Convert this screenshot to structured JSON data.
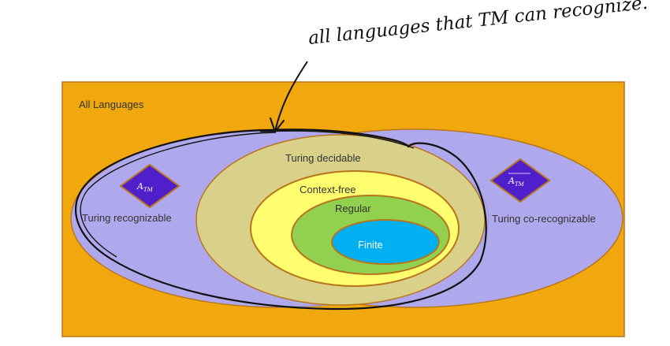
{
  "annotation": {
    "text": "all languages that TM can recognize."
  },
  "regions": {
    "all_languages": "All Languages",
    "turing_recognizable": "Turing recognizable",
    "turing_co_recognizable": "Turing co-recognizable",
    "turing_decidable": "Turing decidable",
    "context_free": "Context-free",
    "regular": "Regular",
    "finite": "Finite"
  },
  "symbols": {
    "atm_main": "A",
    "atm_sub": "TM",
    "atm_complement_main": "A",
    "atm_complement_sub": "TM"
  },
  "colors": {
    "all_languages": "#F0A80E",
    "recognizable": "#AFA8EC",
    "decidable": "#D9D08A",
    "context_free": "#FFFF70",
    "regular": "#92D050",
    "finite": "#00B0F0",
    "diamond": "#4F1FCC",
    "border": "#B8751C",
    "ink": "#111111"
  }
}
